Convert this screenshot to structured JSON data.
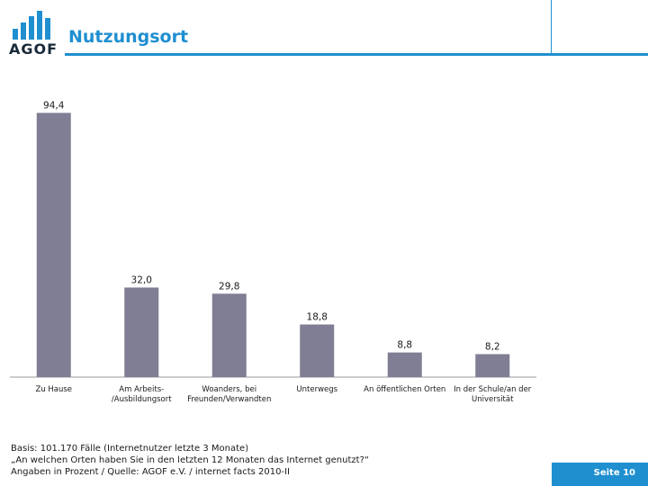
{
  "header": {
    "logo_text": "AGOF",
    "title": "Nutzungsort"
  },
  "chart_data": {
    "type": "bar",
    "categories": [
      [
        "Zu Hause"
      ],
      [
        "Am Arbeits-",
        "/Ausbildungsort"
      ],
      [
        "Woanders, bei",
        "Freunden/Verwandten"
      ],
      [
        "Unterwegs"
      ],
      [
        "An öffentlichen Orten"
      ],
      [
        "In der Schule/an der",
        "Universität"
      ]
    ],
    "values": [
      94.4,
      32.0,
      29.8,
      18.8,
      8.8,
      8.2
    ],
    "value_labels": [
      "94,4",
      "32,0",
      "29,8",
      "18,8",
      "8,8",
      "8,2"
    ],
    "bar_color": "#7f7e94",
    "ylim": [
      0,
      100
    ],
    "grid": false
  },
  "footer": {
    "line1": "Basis: 101.170 Fälle (Internetnutzer letzte 3 Monate)",
    "line2": "„An welchen Orten haben Sie in den letzten 12 Monaten das Internet genutzt?“",
    "line3": "Angaben in Prozent / Quelle: AGOF e.V. / internet facts 2010-II"
  },
  "page": {
    "label": "Seite 10"
  },
  "colors": {
    "accent": "#1f8fd0",
    "bar": "#7f7e94"
  }
}
